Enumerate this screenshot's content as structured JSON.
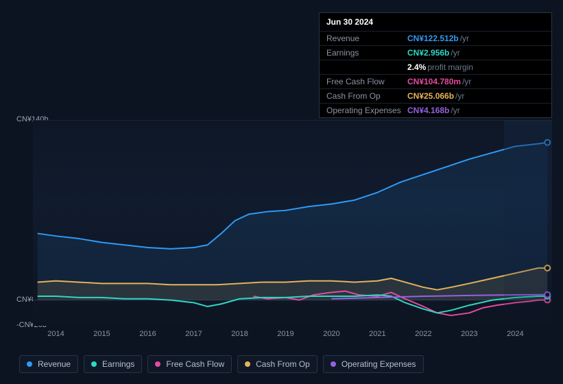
{
  "tooltip": {
    "date": "Jun 30 2024",
    "rows": [
      {
        "label": "Revenue",
        "value": "CN¥122.512b",
        "suffix": "/yr",
        "color": "#2f9af6"
      },
      {
        "label": "Earnings",
        "value": "CN¥2.956b",
        "suffix": "/yr",
        "color": "#2fd7c4"
      },
      {
        "label": "",
        "value": "2.4%",
        "suffix": "profit margin",
        "color": "#ffffff"
      },
      {
        "label": "Free Cash Flow",
        "value": "CN¥104.780m",
        "suffix": "/yr",
        "color": "#e54aa0"
      },
      {
        "label": "Cash From Op",
        "value": "CN¥25.066b",
        "suffix": "/yr",
        "color": "#e6b35a"
      },
      {
        "label": "Operating Expenses",
        "value": "CN¥4.168b",
        "suffix": "/yr",
        "color": "#9561e2"
      }
    ]
  },
  "chart": {
    "type": "line",
    "background_color": "#0d1421",
    "y": {
      "min": -20,
      "max": 140,
      "labels": [
        {
          "v": 140,
          "text": "CN¥140b"
        },
        {
          "v": 0,
          "text": "CN¥0"
        },
        {
          "v": -20,
          "text": "-CN¥20b"
        }
      ],
      "label_color": "#9aa4b5",
      "label_fontsize": 11
    },
    "x": {
      "min": 2013.5,
      "max": 2024.8,
      "ticks": [
        2014,
        2015,
        2016,
        2017,
        2018,
        2019,
        2020,
        2021,
        2022,
        2023,
        2024
      ],
      "label_color": "#8a95a6",
      "label_fontsize": 11
    },
    "series": [
      {
        "name": "Revenue",
        "color": "#2f9af6",
        "width": 2,
        "fill_opacity": 0.1,
        "points": [
          [
            2013.6,
            52
          ],
          [
            2014,
            50
          ],
          [
            2014.5,
            48
          ],
          [
            2015,
            45
          ],
          [
            2015.5,
            43
          ],
          [
            2016,
            41
          ],
          [
            2016.5,
            40
          ],
          [
            2017,
            41
          ],
          [
            2017.3,
            43
          ],
          [
            2017.6,
            52
          ],
          [
            2017.9,
            62
          ],
          [
            2018.2,
            67
          ],
          [
            2018.6,
            69
          ],
          [
            2019,
            70
          ],
          [
            2019.5,
            73
          ],
          [
            2020,
            75
          ],
          [
            2020.5,
            78
          ],
          [
            2021,
            84
          ],
          [
            2021.5,
            92
          ],
          [
            2022,
            98
          ],
          [
            2022.5,
            104
          ],
          [
            2023,
            110
          ],
          [
            2023.5,
            115
          ],
          [
            2024,
            120
          ],
          [
            2024.5,
            122
          ],
          [
            2024.7,
            123
          ]
        ]
      },
      {
        "name": "Cash From Op",
        "color": "#e6b35a",
        "width": 2,
        "fill_opacity": 0.12,
        "points": [
          [
            2013.6,
            14
          ],
          [
            2014,
            15
          ],
          [
            2014.5,
            14
          ],
          [
            2015,
            13
          ],
          [
            2015.5,
            13
          ],
          [
            2016,
            13
          ],
          [
            2016.5,
            12
          ],
          [
            2017,
            12
          ],
          [
            2017.5,
            12
          ],
          [
            2018,
            13
          ],
          [
            2018.5,
            14
          ],
          [
            2019,
            14
          ],
          [
            2019.5,
            15
          ],
          [
            2020,
            15
          ],
          [
            2020.5,
            14
          ],
          [
            2021,
            15
          ],
          [
            2021.3,
            17
          ],
          [
            2021.6,
            14
          ],
          [
            2022,
            10
          ],
          [
            2022.3,
            8
          ],
          [
            2022.6,
            10
          ],
          [
            2023,
            13
          ],
          [
            2023.5,
            17
          ],
          [
            2024,
            21
          ],
          [
            2024.5,
            25
          ],
          [
            2024.7,
            25
          ]
        ]
      },
      {
        "name": "Free Cash Flow",
        "color": "#e54aa0",
        "width": 2,
        "fill_opacity": 0,
        "points": [
          [
            2018.3,
            3
          ],
          [
            2018.6,
            1
          ],
          [
            2019,
            2
          ],
          [
            2019.3,
            0
          ],
          [
            2019.6,
            4
          ],
          [
            2020,
            6
          ],
          [
            2020.3,
            7
          ],
          [
            2020.6,
            4
          ],
          [
            2021,
            3
          ],
          [
            2021.3,
            6
          ],
          [
            2021.6,
            1
          ],
          [
            2022,
            -5
          ],
          [
            2022.3,
            -10
          ],
          [
            2022.6,
            -12
          ],
          [
            2023,
            -10
          ],
          [
            2023.3,
            -6
          ],
          [
            2023.6,
            -4
          ],
          [
            2024,
            -2
          ],
          [
            2024.3,
            -1
          ],
          [
            2024.5,
            0
          ],
          [
            2024.7,
            0.1
          ]
        ]
      },
      {
        "name": "Earnings",
        "color": "#2fd7c4",
        "width": 2,
        "fill_opacity": 0,
        "points": [
          [
            2013.6,
            3
          ],
          [
            2014,
            3
          ],
          [
            2014.5,
            2
          ],
          [
            2015,
            2
          ],
          [
            2015.5,
            1
          ],
          [
            2016,
            1
          ],
          [
            2016.5,
            0
          ],
          [
            2017,
            -2
          ],
          [
            2017.3,
            -5
          ],
          [
            2017.6,
            -3
          ],
          [
            2018,
            1
          ],
          [
            2018.5,
            2
          ],
          [
            2019,
            2
          ],
          [
            2019.5,
            3
          ],
          [
            2020,
            3
          ],
          [
            2020.5,
            3
          ],
          [
            2021,
            4
          ],
          [
            2021.3,
            3
          ],
          [
            2021.6,
            -2
          ],
          [
            2022,
            -7
          ],
          [
            2022.3,
            -10
          ],
          [
            2022.6,
            -8
          ],
          [
            2023,
            -4
          ],
          [
            2023.5,
            0
          ],
          [
            2024,
            2
          ],
          [
            2024.5,
            3
          ],
          [
            2024.7,
            3
          ]
        ]
      },
      {
        "name": "Operating Expenses",
        "color": "#9561e2",
        "width": 2,
        "fill_opacity": 0,
        "points": [
          [
            2020,
            1
          ],
          [
            2020.5,
            1.5
          ],
          [
            2021,
            2
          ],
          [
            2021.5,
            2.5
          ],
          [
            2022,
            3
          ],
          [
            2022.5,
            3.3
          ],
          [
            2023,
            3.6
          ],
          [
            2023.5,
            3.9
          ],
          [
            2024,
            4.1
          ],
          [
            2024.5,
            4.2
          ],
          [
            2024.7,
            4.2
          ]
        ]
      }
    ],
    "marker_x": 2024.7,
    "markers": [
      {
        "series": "Revenue",
        "color": "#2f9af6"
      },
      {
        "series": "Cash From Op",
        "color": "#e6b35a"
      },
      {
        "series": "Free Cash Flow",
        "color": "#e54aa0"
      },
      {
        "series": "Earnings",
        "color": "#2fd7c4"
      },
      {
        "series": "Operating Expenses",
        "color": "#9561e2"
      }
    ]
  },
  "legend": [
    {
      "label": "Revenue",
      "color": "#2f9af6"
    },
    {
      "label": "Earnings",
      "color": "#2fd7c4"
    },
    {
      "label": "Free Cash Flow",
      "color": "#e54aa0"
    },
    {
      "label": "Cash From Op",
      "color": "#e6b35a"
    },
    {
      "label": "Operating Expenses",
      "color": "#9561e2"
    }
  ]
}
